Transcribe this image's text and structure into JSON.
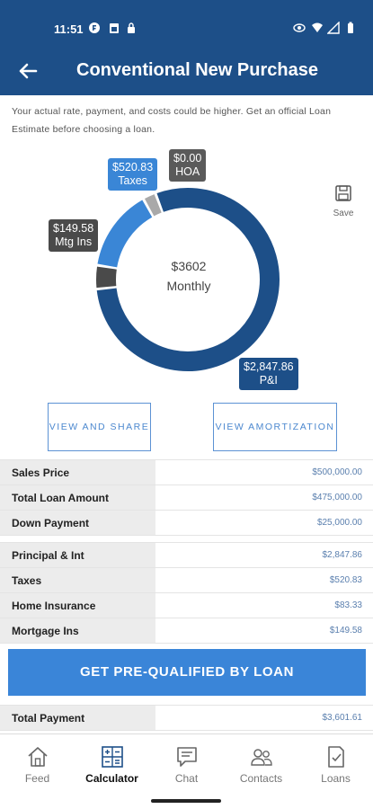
{
  "status": {
    "time": "11:51"
  },
  "header": {
    "title": "Conventional New Purchase"
  },
  "disclaimer": "Your actual rate, payment, and costs could be higher. Get an official Loan Estimate before choosing a loan.",
  "chart_data": {
    "type": "pie",
    "style": "donut",
    "center_value": "$3602",
    "center_label": "Monthly",
    "slices": [
      {
        "label": "P&I",
        "amount": "$2,847.86",
        "value": 2847.86,
        "color": "#1d4f88"
      },
      {
        "label": "Mtg Ins",
        "amount": "$149.58",
        "value": 149.58,
        "color": "#4a4a4a"
      },
      {
        "label": "HOA",
        "amount": "$0.00",
        "value": 0.0,
        "color": "#5a5a5a"
      },
      {
        "label": "Taxes",
        "amount": "$520.83",
        "value": 520.83,
        "color": "#3a86d6"
      },
      {
        "label": "Home Insurance",
        "amount": "$83.33",
        "value": 83.33,
        "color": "#a9a9a9"
      }
    ]
  },
  "save": {
    "label": "Save"
  },
  "buttons": {
    "view_share": "VIEW AND SHARE",
    "view_amortization": "VIEW AMORTIZATION",
    "cta": "GET PRE-QUALIFIED BY LOAN"
  },
  "loan_table": [
    {
      "label": "Sales Price",
      "value": "$500,000.00"
    },
    {
      "label": "Total Loan Amount",
      "value": "$475,000.00"
    },
    {
      "label": "Down Payment",
      "value": "$25,000.00"
    }
  ],
  "payment_table": [
    {
      "label": "Principal & Int",
      "value": "$2,847.86"
    },
    {
      "label": "Taxes",
      "value": "$520.83"
    },
    {
      "label": "Home Insurance",
      "value": "$83.33"
    },
    {
      "label": "Mortgage Ins",
      "value": "$149.58"
    }
  ],
  "total": {
    "label": "Total Payment",
    "value": "$3,601.61"
  },
  "nav": [
    {
      "label": "Feed",
      "icon": "home-icon"
    },
    {
      "label": "Calculator",
      "icon": "calculator-icon"
    },
    {
      "label": "Chat",
      "icon": "chat-icon"
    },
    {
      "label": "Contacts",
      "icon": "contacts-icon"
    },
    {
      "label": "Loans",
      "icon": "loans-icon"
    }
  ]
}
